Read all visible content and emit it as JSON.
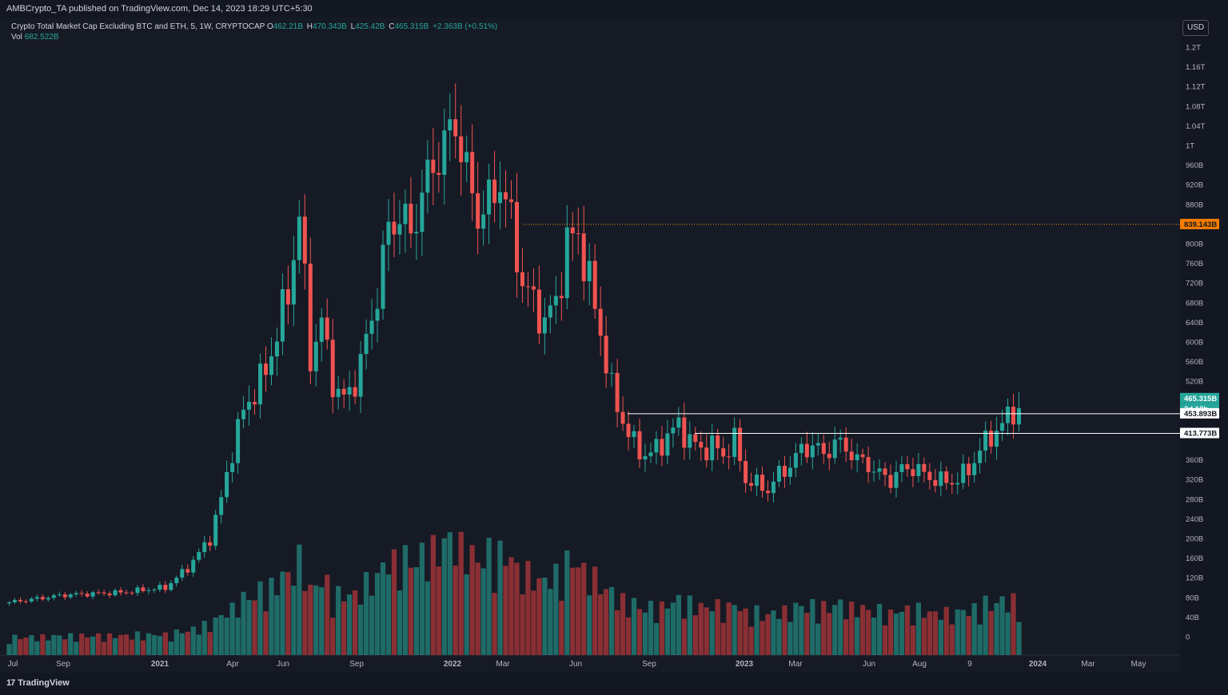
{
  "header": {
    "publisher": "AMBCrypto_TA published on TradingView.com, Dec 14, 2023 18:29 UTC+5:30"
  },
  "legend": {
    "symbol": "Crypto Total Market Cap Excluding BTC and ETH, 5, 1W, CRYPTOCAP",
    "o_label": "O",
    "o": "462.21B",
    "h_label": "H",
    "h": "470.343B",
    "l_label": "L",
    "l": "425.42B",
    "c_label": "C",
    "c": "465.315B",
    "change": "+2.363B (+0.51%)",
    "vol_label": "Vol",
    "vol": "682.522B"
  },
  "currency_button": "USD",
  "footer": {
    "brand": "TradingView",
    "brand_mark": "17"
  },
  "colors": {
    "up": "#26a69a",
    "down": "#ef5350",
    "background": "#161a25",
    "level": "#ff9800",
    "line": "#ffffff"
  },
  "chart_data": {
    "type": "candlestick",
    "title": "Crypto Total Market Cap Excluding BTC and ETH, 5, 1W, CRYPTOCAP",
    "y_unit": "USD",
    "y_ticks": [
      "1.2T",
      "1.16T",
      "1.12T",
      "1.08T",
      "1.04T",
      "1T",
      "960B",
      "920B",
      "880B",
      "800B",
      "760B",
      "720B",
      "680B",
      "640B",
      "600B",
      "560B",
      "520B",
      "480B",
      "360B",
      "320B",
      "280B",
      "240B",
      "200B",
      "160B",
      "120B",
      "80B",
      "40B",
      "0"
    ],
    "x_ticks": [
      "Jul",
      "Sep",
      "2021",
      "Apr",
      "Jun",
      "Sep",
      "2022",
      "Mar",
      "Jun",
      "Sep",
      "2023",
      "Mar",
      "Jun",
      "Aug",
      "9",
      "2024",
      "Mar",
      "May"
    ],
    "price_labels": {
      "level_839": "839.143B",
      "last": "465.315B",
      "countdown": "3d 12h",
      "level_453": "453.893B",
      "level_413": "413.773B"
    },
    "horizontal_levels": [
      {
        "value": 839.143,
        "style": "dotted",
        "color": "orange",
        "from": "2022-04"
      },
      {
        "value": 453.893,
        "style": "solid",
        "color": "white",
        "from": "2022-08"
      },
      {
        "value": 413.773,
        "style": "solid",
        "color": "white",
        "from": "2022-11"
      }
    ],
    "last_candle": {
      "open": 462.21,
      "high": 470.343,
      "low": 425.42,
      "close": 465.315,
      "volume": 682.522
    },
    "anchors_close_B": [
      [
        0,
        70
      ],
      [
        10,
        85
      ],
      [
        20,
        90
      ],
      [
        28,
        100
      ],
      [
        32,
        140
      ],
      [
        36,
        200
      ],
      [
        38,
        280
      ],
      [
        40,
        380
      ],
      [
        42,
        460
      ],
      [
        44,
        500
      ],
      [
        46,
        540
      ],
      [
        48,
        620
      ],
      [
        50,
        700
      ],
      [
        52,
        860
      ],
      [
        54,
        570
      ],
      [
        56,
        640
      ],
      [
        58,
        520
      ],
      [
        60,
        480
      ],
      [
        62,
        520
      ],
      [
        64,
        600
      ],
      [
        66,
        700
      ],
      [
        68,
        830
      ],
      [
        70,
        860
      ],
      [
        72,
        820
      ],
      [
        74,
        900
      ],
      [
        76,
        960
      ],
      [
        78,
        1000
      ],
      [
        80,
        1050
      ],
      [
        82,
        940
      ],
      [
        84,
        860
      ],
      [
        86,
        880
      ],
      [
        88,
        930
      ],
      [
        90,
        840
      ],
      [
        92,
        720
      ],
      [
        94,
        680
      ],
      [
        96,
        640
      ],
      [
        98,
        680
      ],
      [
        100,
        800
      ],
      [
        102,
        820
      ],
      [
        104,
        720
      ],
      [
        106,
        620
      ],
      [
        108,
        500
      ],
      [
        110,
        440
      ],
      [
        112,
        390
      ],
      [
        114,
        370
      ],
      [
        116,
        380
      ],
      [
        118,
        410
      ],
      [
        120,
        430
      ],
      [
        122,
        400
      ],
      [
        124,
        380
      ],
      [
        126,
        390
      ],
      [
        128,
        370
      ],
      [
        130,
        400
      ],
      [
        132,
        320
      ],
      [
        134,
        310
      ],
      [
        136,
        300
      ],
      [
        138,
        330
      ],
      [
        140,
        350
      ],
      [
        142,
        380
      ],
      [
        144,
        390
      ],
      [
        146,
        370
      ],
      [
        148,
        395
      ],
      [
        150,
        385
      ],
      [
        152,
        360
      ],
      [
        154,
        350
      ],
      [
        156,
        330
      ],
      [
        158,
        320
      ],
      [
        160,
        340
      ],
      [
        162,
        345
      ],
      [
        164,
        330
      ],
      [
        166,
        320
      ],
      [
        168,
        315
      ],
      [
        170,
        320
      ],
      [
        172,
        340
      ],
      [
        174,
        380
      ],
      [
        176,
        410
      ],
      [
        178,
        430
      ],
      [
        180,
        465
      ]
    ]
  }
}
